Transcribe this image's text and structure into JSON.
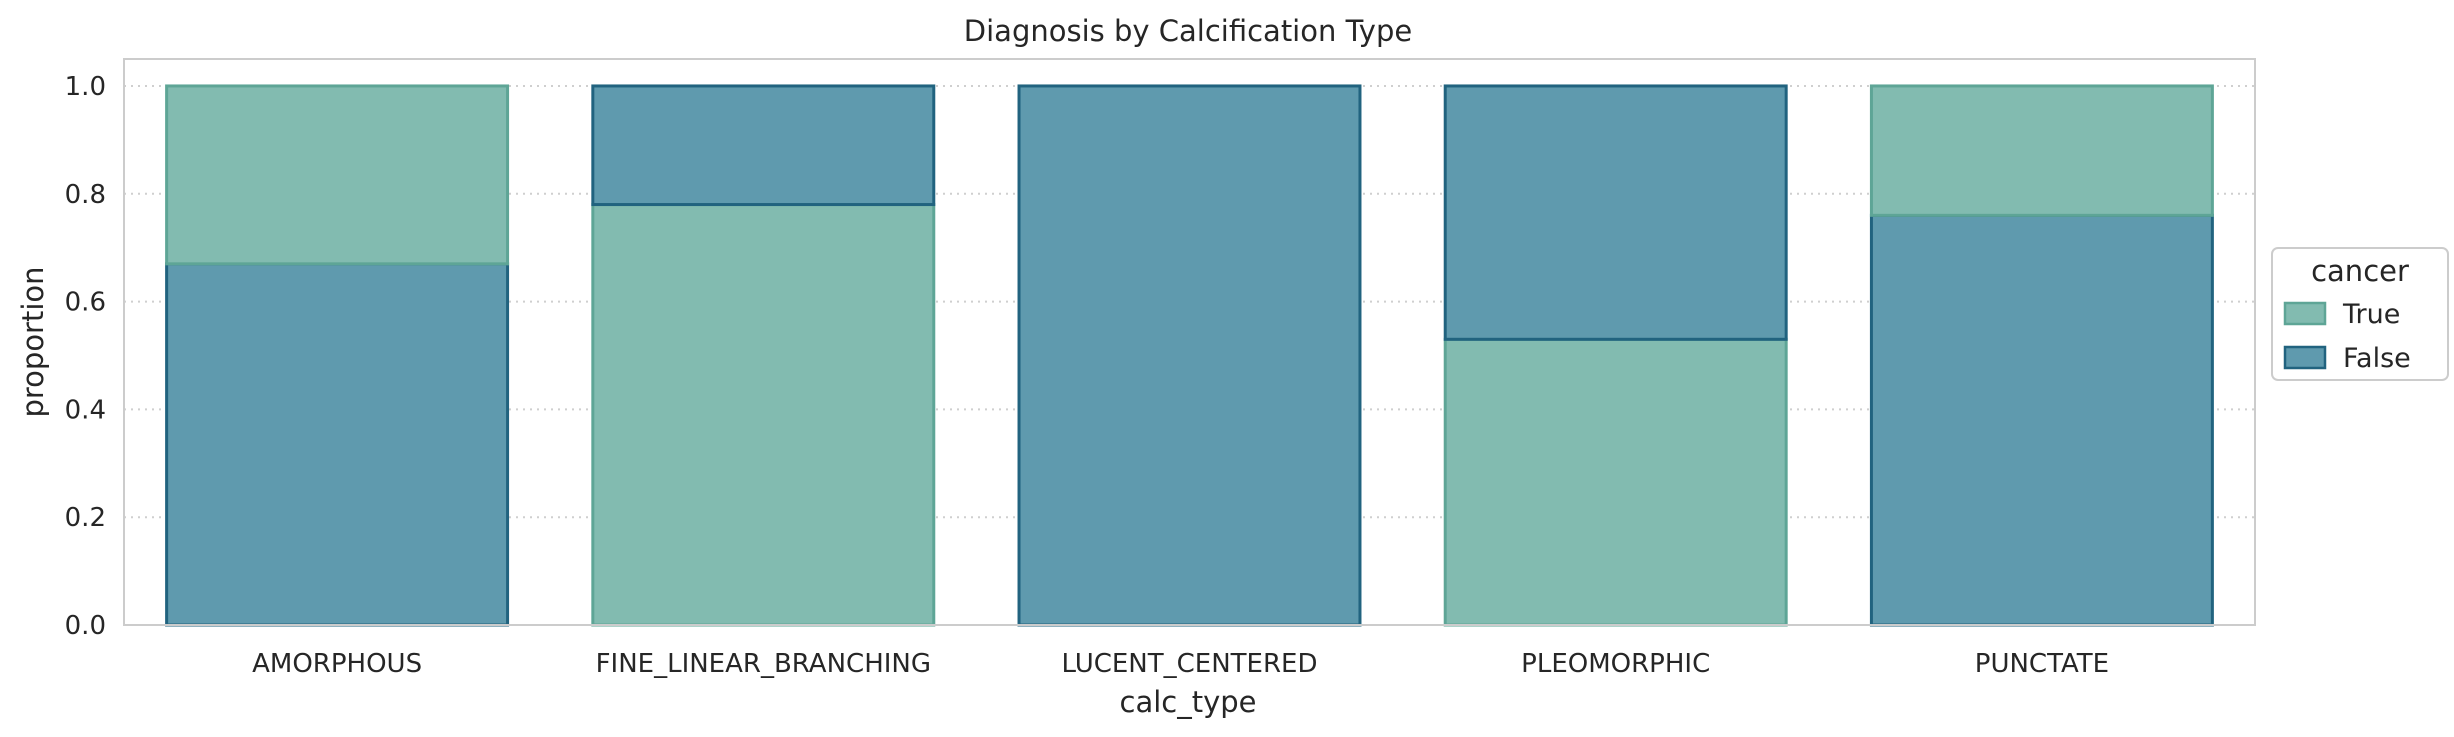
{
  "chart_data": {
    "type": "bar",
    "stacked": true,
    "title": "Diagnosis by Calcification Type",
    "xlabel": "calc_type",
    "ylabel": "proportion",
    "ylim": [
      0,
      1.05
    ],
    "yticks": [
      "0.0",
      "0.2",
      "0.4",
      "0.6",
      "0.8",
      "1.0"
    ],
    "grid": "y-dotted",
    "categories": [
      "AMORPHOUS",
      "FINE_LINEAR_BRANCHING",
      "LUCENT_CENTERED",
      "PLEOMORPHIC",
      "PUNCTATE"
    ],
    "series": [
      {
        "name": "True",
        "values": [
          0.33,
          0.78,
          0.0,
          0.53,
          0.24
        ],
        "color": "#82bbb0",
        "edge": "#5ea596"
      },
      {
        "name": "False",
        "values": [
          0.67,
          0.22,
          1.0,
          0.47,
          0.76
        ],
        "color": "#5f9aae",
        "edge": "#21637f"
      }
    ],
    "stack_order": [
      [
        "False",
        "True"
      ],
      [
        "True",
        "False"
      ],
      [
        "True",
        "False"
      ],
      [
        "True",
        "False"
      ],
      [
        "False",
        "True"
      ]
    ],
    "legend": {
      "title": "cancer",
      "placement": "right-outside",
      "entries": [
        "True",
        "False"
      ]
    }
  }
}
